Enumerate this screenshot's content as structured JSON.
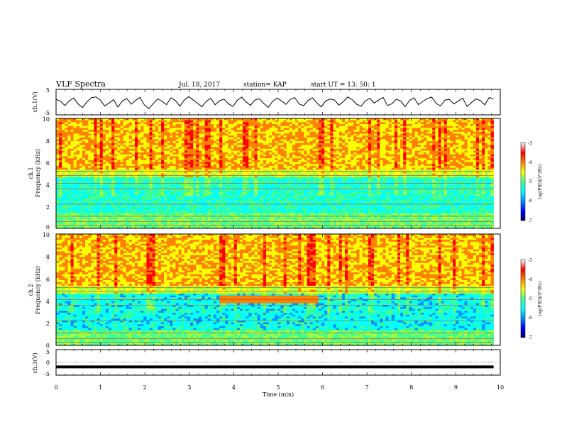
{
  "header": {
    "title": "VLF Spectra",
    "date": "Jul. 18, 2017",
    "station": "station= KAP",
    "start": "start UT =  13: 50: 1"
  },
  "colors": {
    "spectrogram_scale": [
      "#000070",
      "#0000ff",
      "#0090ff",
      "#00ffff",
      "#40ff90",
      "#a0ff40",
      "#ffff00",
      "#ff8000",
      "#ff0000",
      "#ffffff"
    ],
    "waveform": "#000000"
  },
  "chart_data": [
    {
      "type": "line",
      "panel": "ch1-waveform",
      "ylabel": "ch.1(V)",
      "ylim": [
        -5,
        5
      ],
      "yticks": [
        "5",
        "-5"
      ],
      "xlim": [
        0,
        9.85
      ],
      "series": [
        {
          "values": [
            1.2,
            0.4,
            -1.5,
            0.6,
            1.8,
            -0.8,
            -2.4,
            0.2,
            1.9,
            2.3,
            0.9,
            -1.7,
            -0.4,
            1.1,
            -2.2,
            0.5,
            1.6,
            -0.9,
            0.8,
            2.1,
            -1.3,
            -2.9,
            -0.6,
            1.4,
            0.3,
            -1.1,
            1.9,
            0.7,
            -1.8,
            0.9,
            2.4,
            1.0,
            -0.5,
            -2.0,
            0.4,
            1.7,
            -1.2,
            0.6,
            1.3,
            -0.7,
            -1.9,
            0.8,
            2.2,
            0.1,
            -1.4,
            0.9,
            1.5,
            -0.6,
            -2.3,
            0.3,
            1.8,
            0.6,
            -1.0,
            1.2,
            2.0,
            -0.8,
            -1.6,
            0.7,
            1.9,
            -0.3,
            -2.1,
            0.5,
            1.4,
            0.9,
            -1.3,
            0.2,
            2.3,
            1.1,
            -0.9,
            -1.8,
            0.6,
            1.7,
            -0.4,
            0.9,
            2.1,
            -1.5,
            -0.7,
            1.3,
            0.4,
            -2.0,
            0.8,
            1.9,
            -1.1,
            0.3,
            1.6,
            2.2,
            -0.6,
            -1.7,
            0.9,
            1.2,
            -0.8,
            0.5,
            1.8,
            -1.9,
            -0.2,
            1.4,
            0.7,
            -1.2,
            2.0,
            1.5
          ]
        }
      ]
    },
    {
      "type": "heatmap",
      "panel": "ch1-spectrogram",
      "ylabel": "ch.1",
      "ylabel2": "Frequency (kHz)",
      "ylim": [
        0,
        10
      ],
      "yticks": [
        "0",
        "2",
        "4",
        "6",
        "8",
        "10"
      ],
      "xlim": [
        0,
        9.85
      ],
      "colorbar": {
        "label": "log(PSD)(V²/Hz)",
        "range": [
          -7,
          -3
        ],
        "ticks": [
          "-3",
          "-4",
          "-5",
          "-6",
          "-7"
        ]
      }
    },
    {
      "type": "heatmap",
      "panel": "ch2-spectrogram",
      "ylabel": "ch.2",
      "ylabel2": "Frequency (kHz)",
      "ylim": [
        0,
        10
      ],
      "yticks": [
        "0",
        "2",
        "4",
        "6",
        "8",
        "10"
      ],
      "xlim": [
        0,
        9.85
      ],
      "colorbar": {
        "label": "log(PSD)(V²/Hz)",
        "range": [
          -7,
          -3
        ],
        "ticks": [
          "-3",
          "-4",
          "-5",
          "-6",
          "-7"
        ]
      }
    },
    {
      "type": "line",
      "panel": "ch3-waveform",
      "ylabel": "ch.3(V)",
      "ylim": [
        -5,
        5
      ],
      "yticks": [
        "5",
        "0",
        "-5"
      ],
      "xlim": [
        0,
        9.85
      ],
      "series": [
        {
          "values": [
            -2,
            -2
          ]
        }
      ]
    }
  ],
  "xaxis": {
    "label": "Time (min)",
    "range": [
      0,
      10
    ],
    "ticks": [
      "0",
      "1",
      "2",
      "3",
      "4",
      "5",
      "6",
      "7",
      "8",
      "9",
      "10"
    ]
  }
}
